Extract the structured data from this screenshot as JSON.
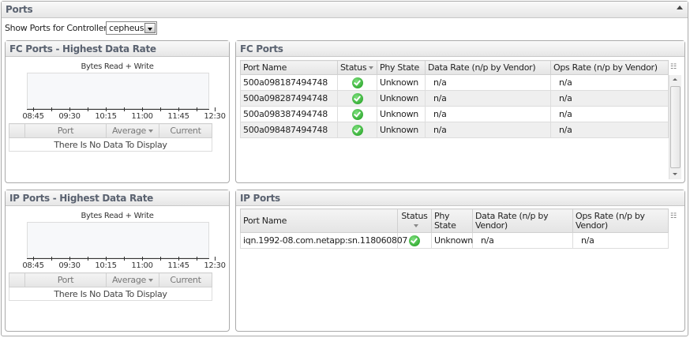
{
  "title": "Ports",
  "controller": {
    "label": "Show Ports for Controller:",
    "value": "cepheus"
  },
  "colors": {
    "accent": "#5a6270",
    "status_ok": "#1a9a1a"
  },
  "fc_chart": {
    "title": "FC Ports - Highest Data Rate",
    "chart_title": "Bytes Read + Write",
    "ticks": [
      "08:45",
      "09:30",
      "10:15",
      "11:00",
      "11:45",
      "12:30"
    ],
    "columns": [
      "Port",
      "Average",
      "Current"
    ],
    "empty": "There Is No Data To Display"
  },
  "ip_chart": {
    "title": "IP Ports - Highest Data Rate",
    "chart_title": "Bytes Read + Write",
    "ticks": [
      "08:45",
      "09:30",
      "10:15",
      "11:00",
      "11:45",
      "12:30"
    ],
    "columns": [
      "Port",
      "Average",
      "Current"
    ],
    "empty": "There Is No Data To Display"
  },
  "fc_ports": {
    "title": "FC Ports",
    "columns": [
      "Port Name",
      "Status",
      "Phy State",
      "Data Rate (n/p by Vendor)",
      "Ops Rate (n/p by Vendor)"
    ],
    "rows": [
      {
        "name": "500a098187494748",
        "status": "ok",
        "phy": "Unknown",
        "data_rate": "n/a",
        "ops_rate": "n/a"
      },
      {
        "name": "500a098287494748",
        "status": "ok",
        "phy": "Unknown",
        "data_rate": "n/a",
        "ops_rate": "n/a"
      },
      {
        "name": "500a098387494748",
        "status": "ok",
        "phy": "Unknown",
        "data_rate": "n/a",
        "ops_rate": "n/a"
      },
      {
        "name": "500a098487494748",
        "status": "ok",
        "phy": "Unknown",
        "data_rate": "n/a",
        "ops_rate": "n/a"
      }
    ]
  },
  "ip_ports": {
    "title": "IP Ports",
    "columns": [
      "Port Name",
      "Status",
      "Phy State",
      "Data Rate (n/p by Vendor)",
      "Ops Rate (n/p by Vendor)"
    ],
    "rows": [
      {
        "name": "iqn.1992-08.com.netapp:sn.118060807",
        "status": "ok",
        "phy": "Unknown",
        "data_rate": "n/a",
        "ops_rate": "n/a"
      }
    ]
  }
}
